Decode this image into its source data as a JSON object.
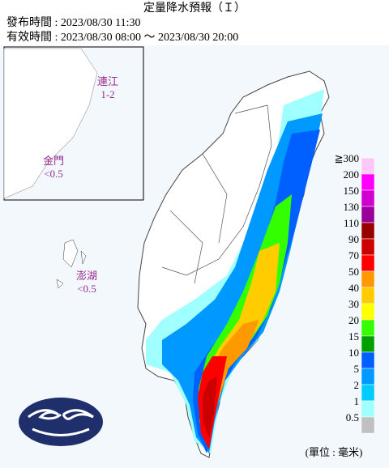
{
  "header": {
    "title": "定量降水預報（Ｉ）",
    "issued": "發布時間 : 2023/08/30 11:30",
    "valid": "有效時間 : 2023/08/30 08:00 ～ 2023/08/30 20:00"
  },
  "regions": [
    {
      "name": "連江",
      "value": "1-2"
    },
    {
      "name": "金門",
      "value": "<0.5"
    },
    {
      "name": "澎湖",
      "value": "<0.5"
    }
  ],
  "legend": {
    "items": [
      {
        "label": "≧300",
        "color": "#fdc8f6"
      },
      {
        "label": "200",
        "color": "#ff00ff"
      },
      {
        "label": "150",
        "color": "#d000d0"
      },
      {
        "label": "130",
        "color": "#990099"
      },
      {
        "label": "110",
        "color": "#990000"
      },
      {
        "label": "90",
        "color": "#cc0000"
      },
      {
        "label": "70",
        "color": "#ff0000"
      },
      {
        "label": "50",
        "color": "#ff9900"
      },
      {
        "label": "40",
        "color": "#ffcc00"
      },
      {
        "label": "30",
        "color": "#ffff00"
      },
      {
        "label": "20",
        "color": "#33ff00"
      },
      {
        "label": "15",
        "color": "#00a000"
      },
      {
        "label": "10",
        "color": "#0060ff"
      },
      {
        "label": "5",
        "color": "#0099ff"
      },
      {
        "label": "2",
        "color": "#00ccff"
      },
      {
        "label": "1",
        "color": "#a0ffff"
      },
      {
        "label": "0.5",
        "color": "#c0c0c0"
      }
    ],
    "unit": "(單位 : 毫米)"
  }
}
